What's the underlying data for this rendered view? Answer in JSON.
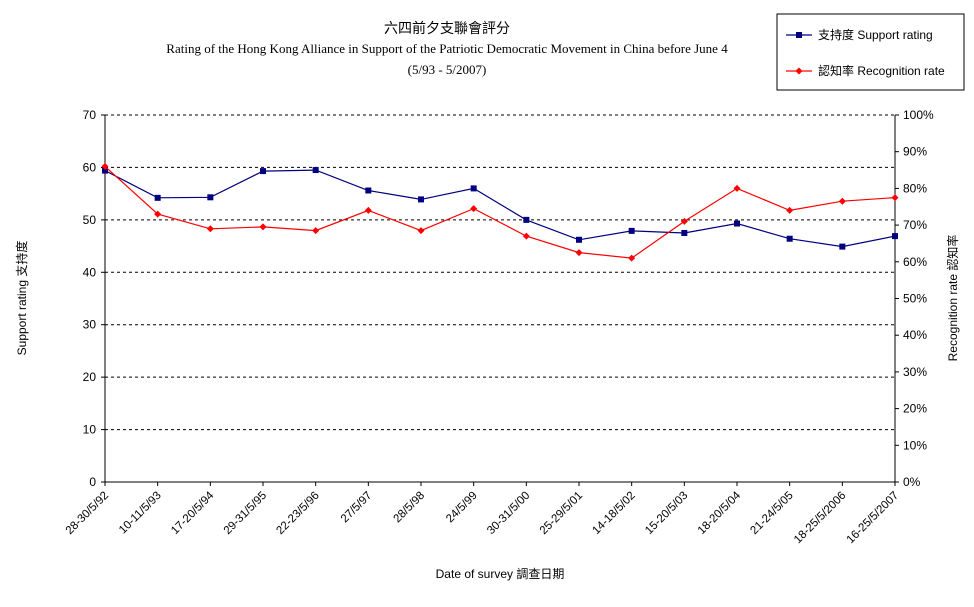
{
  "chart_data": {
    "type": "line",
    "title": "六四前夕支聯會評分",
    "subtitle": "Rating of the Hong Kong Alliance in Support of the Patriotic Democratic Movement in China before June 4",
    "subtitle2": "(5/93 - 5/2007)",
    "xlabel": "Date of survey  調查日期",
    "ylabel": "Support rating  支持度",
    "y2label": "Recognition rate  認知率",
    "ylim": [
      0,
      70
    ],
    "y2lim": [
      0,
      100
    ],
    "yticks": [
      "0",
      "10",
      "20",
      "30",
      "40",
      "50",
      "60",
      "70"
    ],
    "y2ticks": [
      "0%",
      "10%",
      "20%",
      "30%",
      "40%",
      "50%",
      "60%",
      "70%",
      "80%",
      "90%",
      "100%"
    ],
    "grid": "horizontal dashed",
    "legend_position": "top-right",
    "categories": [
      "28-30/5/92",
      "10-11/5/93",
      "17-20/5/94",
      "29-31/5/95",
      "22-23/5/96",
      "27/5/97",
      "28/5/98",
      "24/5/99",
      "30-31/5/00",
      "25-29/5/01",
      "14-18/5/02",
      "15-20/5/03",
      "18-20/5/04",
      "21-24/5/05",
      "18-25/5/2006",
      "16-25/5/2007"
    ],
    "series": [
      {
        "name": "支持度 Support rating",
        "axis": "left",
        "color": "#000080",
        "marker": "square",
        "values": [
          59.4,
          54.2,
          54.3,
          59.3,
          59.5,
          55.6,
          53.9,
          56.0,
          50.0,
          46.2,
          47.9,
          47.5,
          49.3,
          46.4,
          44.9,
          46.9
        ]
      },
      {
        "name": "認知率 Recognition rate",
        "axis": "right",
        "color": "#ff0000",
        "marker": "diamond",
        "values": [
          86.0,
          73.0,
          69.0,
          69.5,
          68.5,
          74.0,
          68.5,
          74.5,
          67.0,
          62.5,
          61.0,
          71.0,
          80.0,
          74.0,
          76.5,
          77.5
        ]
      }
    ]
  }
}
